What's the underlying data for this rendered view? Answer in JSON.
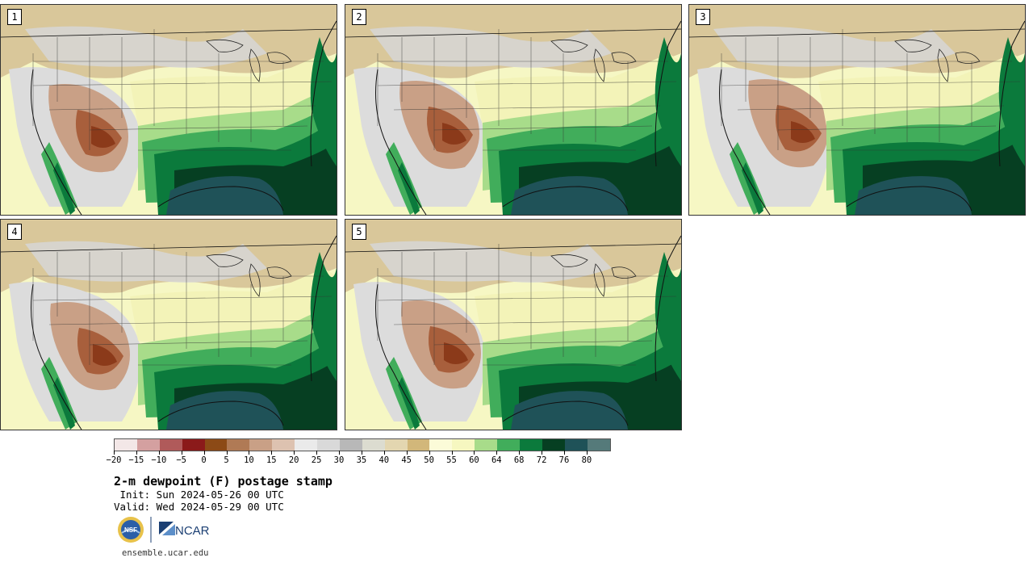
{
  "panels": [
    {
      "label": "1"
    },
    {
      "label": "2"
    },
    {
      "label": "3"
    },
    {
      "label": "4"
    },
    {
      "label": "5"
    }
  ],
  "colorbar": {
    "colors": [
      "#f3e7e7",
      "#d4a0a0",
      "#b05a5a",
      "#8b1a1a",
      "#8c4a16",
      "#b07a55",
      "#c9a086",
      "#ddc2b0",
      "#eaeaea",
      "#d9d9d9",
      "#b8b8b8",
      "#dcdcd0",
      "#e3d6b0",
      "#d2b77a",
      "#fbfbd8",
      "#f6f7c0",
      "#a8dc8a",
      "#41ad5b",
      "#0b7a3c",
      "#063f22",
      "#1f5258",
      "#557a7a"
    ],
    "tick_labels": [
      "−20",
      "−15",
      "−10",
      "−5",
      "0",
      "5",
      "10",
      "15",
      "20",
      "25",
      "30",
      "35",
      "40",
      "45",
      "50",
      "55",
      "60",
      "64",
      "68",
      "72",
      "76",
      "80"
    ]
  },
  "title": "2-m dewpoint (F) postage stamp",
  "init": " Init: Sun 2024-05-26 00 UTC",
  "valid": "Valid: Wed 2024-05-29 00 UTC",
  "logos": {
    "nsf": "NSF",
    "ncar": "NCAR"
  },
  "url": "ensemble.ucar.edu"
}
